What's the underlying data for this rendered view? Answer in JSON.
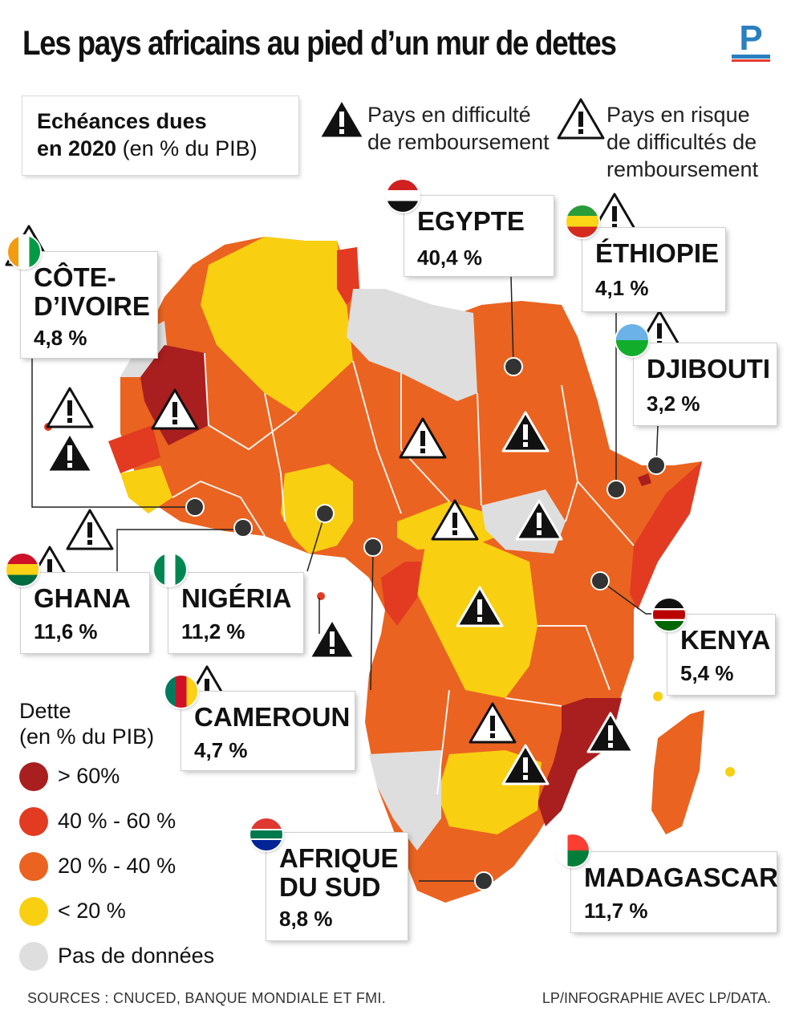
{
  "title": "Les pays africains au pied d’un mur de dettes",
  "logo_letter": "P",
  "legend_box": {
    "line1": "Echéances dues",
    "line2_bold": "en 2020",
    "line2_rest": " (en % du PIB)"
  },
  "warning_legend": {
    "difficulty": "Pays en difficulté\nde remboursement",
    "risk": "Pays en risque\nde difficultés de\nremboursement"
  },
  "countries": [
    {
      "name": "CÔTE-\nD’IVOIRE",
      "value": "4,8 %"
    },
    {
      "name": "EGYPTE",
      "value": "40,4 %"
    },
    {
      "name": "ÉTHIOPIE",
      "value": "4,1 %"
    },
    {
      "name": "DJIBOUTI",
      "value": "3,2 %"
    },
    {
      "name": "GHANA",
      "value": "11,6 %"
    },
    {
      "name": "NIGÉRIA",
      "value": "11,2 %"
    },
    {
      "name": "KENYA",
      "value": "5,4 %"
    },
    {
      "name": "CAMEROUN",
      "value": "4,7 %"
    },
    {
      "name": "AFRIQUE\nDU SUD",
      "value": "8,8 %"
    },
    {
      "name": "MADAGASCAR",
      "value": "11,7 %"
    }
  ],
  "debt_legend": {
    "title": "Dette\n(en % du PIB)",
    "items": [
      {
        "label": "> 60%",
        "color": "#a91e1e"
      },
      {
        "label": "40 % - 60 %",
        "color": "#e23b22"
      },
      {
        "label": "20 % - 40 %",
        "color": "#ea6320"
      },
      {
        "label": "< 20 %",
        "color": "#f9cf12"
      },
      {
        "label": "Pas de données",
        "color": "#dedede"
      }
    ]
  },
  "warning_icon": "warning-triangle-icon",
  "sources": "SOURCES : CNUCED, BANQUE MONDIALE ET FMI.",
  "credit": "LP/INFOGRAPHIE AVEC LP/DATA."
}
